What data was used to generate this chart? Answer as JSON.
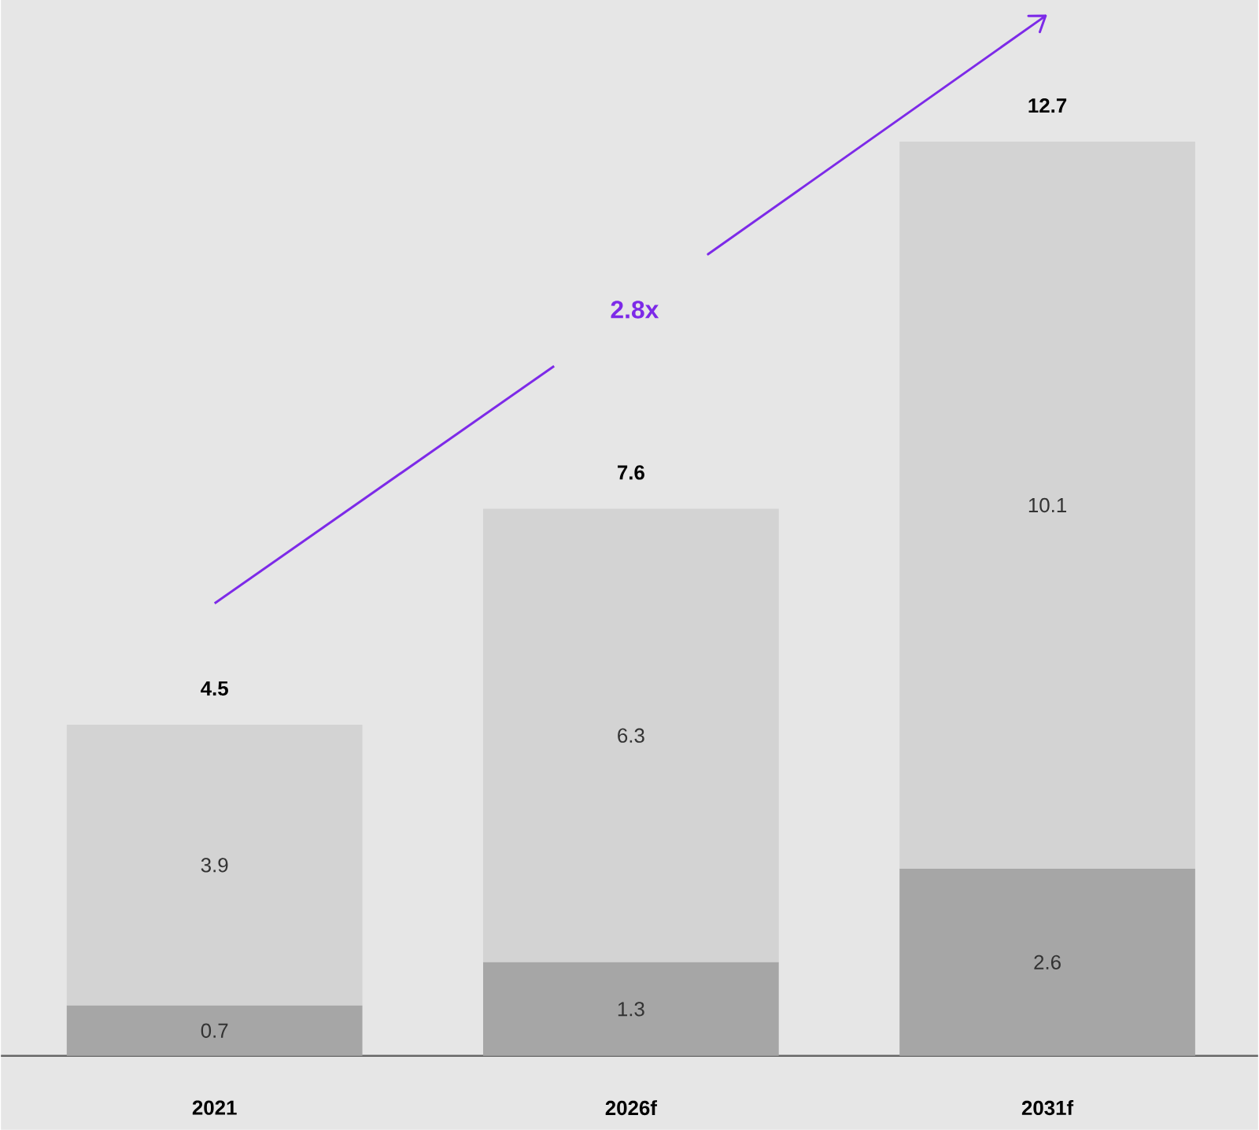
{
  "chart_data": {
    "type": "bar",
    "stacked": true,
    "categories": [
      "2021",
      "2026f",
      "2031f"
    ],
    "series": [
      {
        "color": "#a6a6a6",
        "values": [
          0.7,
          1.3,
          2.6
        ]
      },
      {
        "color": "#d3d3d3",
        "values": [
          3.9,
          6.3,
          10.1
        ]
      }
    ],
    "data_labels": true,
    "totals": [
      "4.5",
      "7.6",
      "12.7"
    ],
    "annotations": [
      "2.8x"
    ]
  }
}
